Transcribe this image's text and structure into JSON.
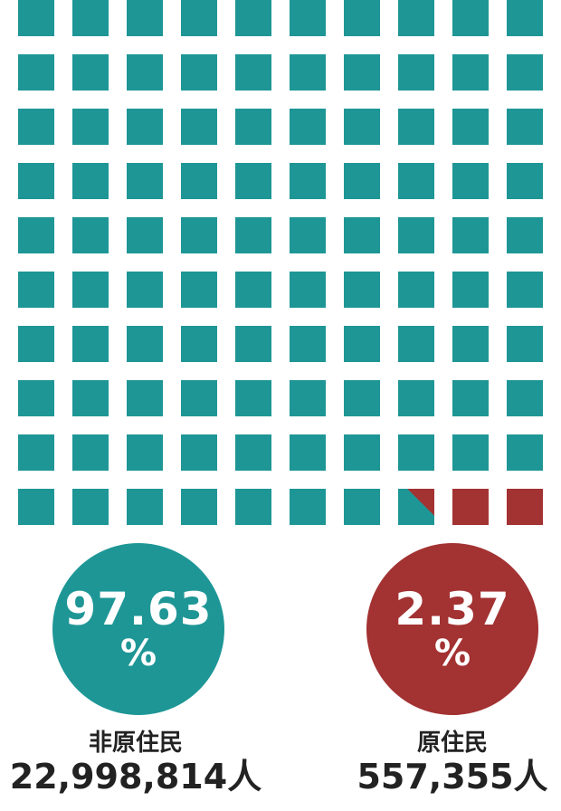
{
  "colors": {
    "non_indigenous": "#1e9696",
    "indigenous": "#a33232"
  },
  "chart_data": {
    "type": "waffle",
    "grid": {
      "rows": 10,
      "cols": 10
    },
    "series": [
      {
        "name": "非原住民",
        "percent": "97.63",
        "percent_unit": "%",
        "count": "22,998,814人",
        "value": 97.63
      },
      {
        "name": "原住民",
        "percent": "2.37",
        "percent_unit": "%",
        "count": "557,355人",
        "value": 2.37
      }
    ]
  }
}
